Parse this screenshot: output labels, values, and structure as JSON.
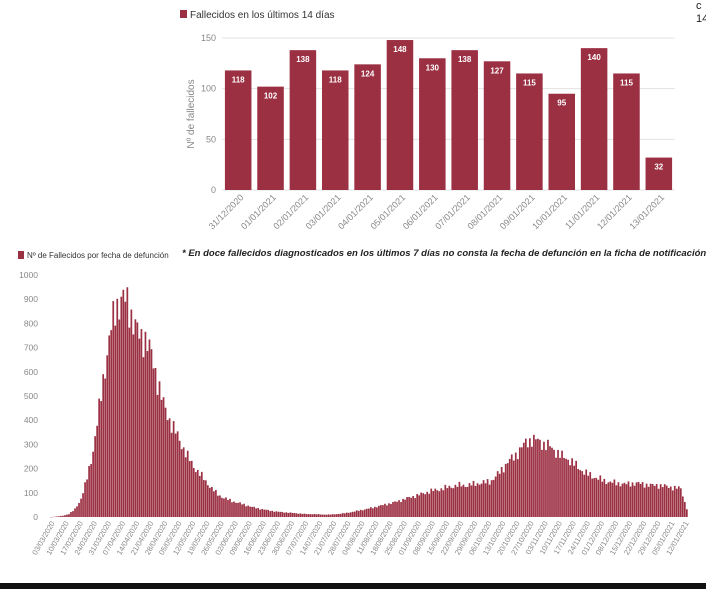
{
  "corner": {
    "line1": "c",
    "line2": "14"
  },
  "footnote": "* En doce fallecidos diagnosticados en los últimos 7 días no consta la fecha de defunción en la ficha de notificación",
  "colors": {
    "bar": "#9b3043",
    "grid": "#e3e3e3",
    "axis_text": "#888888"
  },
  "chart_data": [
    {
      "type": "bar",
      "legend": "Fallecidos en los últimos 14 días",
      "ylabel": "Nº de fallecidos",
      "ylim": [
        0,
        150
      ],
      "yticks": [
        0,
        50,
        100,
        150
      ],
      "categories": [
        "31/12/2020",
        "01/01/2021",
        "02/01/2021",
        "03/01/2021",
        "04/01/2021",
        "05/01/2021",
        "06/01/2021",
        "07/01/2021",
        "08/01/2021",
        "09/01/2021",
        "10/01/2021",
        "11/01/2021",
        "12/01/2021",
        "13/01/2021"
      ],
      "values": [
        118,
        102,
        138,
        118,
        124,
        148,
        130,
        138,
        127,
        115,
        95,
        140,
        115,
        32
      ]
    },
    {
      "type": "bar",
      "legend": "Nº de Fallecidos por fecha de defunción",
      "ylim": [
        0,
        1000
      ],
      "yticks": [
        0,
        100,
        200,
        300,
        400,
        500,
        600,
        700,
        800,
        900,
        1000
      ],
      "x_tick_labels": [
        "03/03/2020",
        "10/03/2020",
        "17/03/2020",
        "24/03/2020",
        "31/03/2020",
        "07/04/2020",
        "14/04/2020",
        "21/04/2020",
        "28/04/2020",
        "05/05/2020",
        "12/05/2020",
        "19/05/2020",
        "26/05/2020",
        "02/06/2020",
        "09/06/2020",
        "16/06/2020",
        "23/06/2020",
        "30/06/2020",
        "07/07/2020",
        "14/07/2020",
        "21/07/2020",
        "28/07/2020",
        "04/08/2020",
        "11/08/2020",
        "18/08/2020",
        "25/08/2020",
        "01/09/2020",
        "08/09/2020",
        "15/09/2020",
        "22/09/2020",
        "29/09/2020",
        "06/10/2020",
        "13/10/2020",
        "20/10/2020",
        "27/10/2020",
        "03/11/2020",
        "10/11/2020",
        "17/11/2020",
        "24/11/2020",
        "01/12/2020",
        "08/12/2020",
        "15/12/2020",
        "22/12/2020",
        "29/12/2020",
        "05/01/2021",
        "12/01/2021"
      ],
      "series_knots": {
        "description": "daily deaths sampled every ~3 days from 03/03/2020 to 13/01/2021",
        "values": [
          0,
          2,
          5,
          12,
          30,
          70,
          150,
          260,
          420,
          600,
          760,
          870,
          905,
          880,
          800,
          740,
          740,
          660,
          560,
          460,
          400,
          350,
          300,
          250,
          210,
          180,
          150,
          120,
          95,
          80,
          70,
          62,
          55,
          48,
          40,
          35,
          30,
          26,
          22,
          20,
          18,
          16,
          14,
          12,
          12,
          11,
          10,
          10,
          12,
          14,
          18,
          22,
          28,
          32,
          38,
          44,
          50,
          56,
          62,
          70,
          78,
          85,
          92,
          100,
          108,
          112,
          118,
          124,
          128,
          132,
          130,
          135,
          140,
          142,
          148,
          170,
          200,
          230,
          250,
          280,
          310,
          320,
          315,
          300,
          290,
          270,
          250,
          240,
          220,
          200,
          180,
          170,
          160,
          150,
          145,
          140,
          138,
          135,
          140,
          138,
          135,
          130,
          132,
          128,
          125,
          120,
          118,
          32
        ]
      }
    }
  ]
}
